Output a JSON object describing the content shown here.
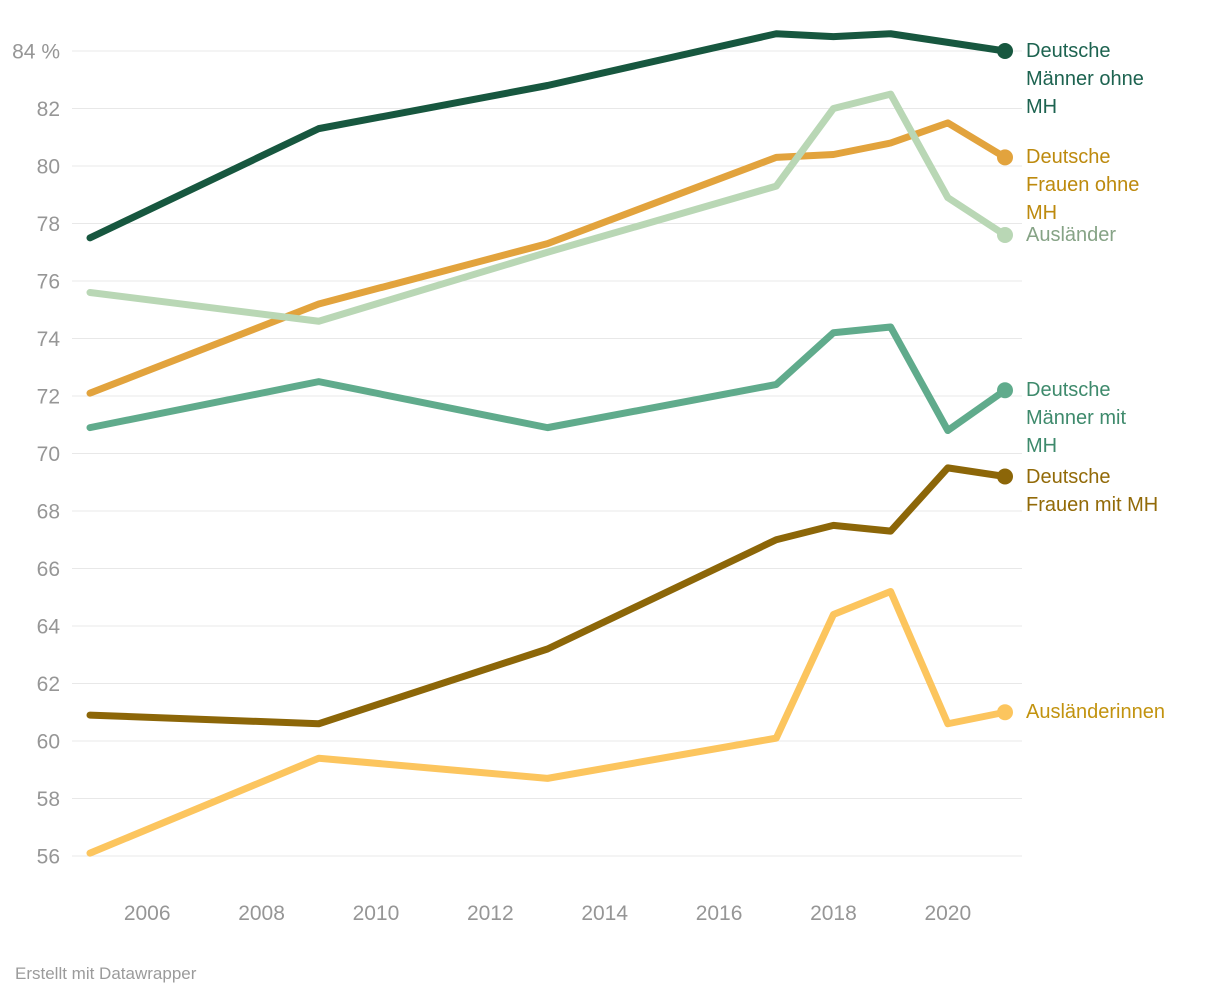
{
  "chart_data": {
    "type": "line",
    "x": [
      2005,
      2009,
      2013,
      2017,
      2018,
      2019,
      2020,
      2021
    ],
    "series": [
      {
        "name": "Deutsche Männer ohne MH",
        "label_lines": [
          "Deutsche",
          "Männer ohne",
          "MH"
        ],
        "color": "#17573f",
        "label_color": "#1d6350",
        "values": [
          77.5,
          81.3,
          82.8,
          84.6,
          84.5,
          84.6,
          84.3,
          84.0
        ]
      },
      {
        "name": "Deutsche Frauen ohne MH",
        "label_lines": [
          "Deutsche",
          "Frauen ohne",
          "MH"
        ],
        "color": "#e2a33d",
        "label_color": "#bd8a0e",
        "values": [
          72.1,
          75.2,
          77.3,
          80.3,
          80.4,
          80.8,
          81.5,
          80.3
        ]
      },
      {
        "name": "Ausländer",
        "label_lines": [
          "Ausländer"
        ],
        "color": "#b9d7b5",
        "label_color": "#86a386",
        "values": [
          75.6,
          74.6,
          77.0,
          79.3,
          82.0,
          82.5,
          78.9,
          77.6
        ]
      },
      {
        "name": "Deutsche Männer mit MH",
        "label_lines": [
          "Deutsche",
          "Männer mit",
          "MH"
        ],
        "color": "#60ab8c",
        "label_color": "#3e8a6c",
        "values": [
          70.9,
          72.5,
          70.9,
          72.4,
          74.2,
          74.4,
          70.8,
          72.2
        ]
      },
      {
        "name": "Deutsche Frauen mit MH",
        "label_lines": [
          "Deutsche",
          "Frauen mit MH"
        ],
        "color": "#8c6608",
        "label_color": "#926a08",
        "values": [
          60.9,
          60.6,
          63.2,
          67.0,
          67.5,
          67.3,
          69.5,
          69.2
        ]
      },
      {
        "name": "Ausländerinnen",
        "label_lines": [
          "Ausländerinnen"
        ],
        "color": "#fcc55e",
        "label_color": "#c2930f",
        "values": [
          56.1,
          59.4,
          58.7,
          60.1,
          64.4,
          65.2,
          60.6,
          61.0
        ]
      }
    ],
    "y_axis": {
      "min": 56,
      "max": 84,
      "step": 2,
      "top_label": "84 %"
    },
    "x_axis": {
      "ticks": [
        2006,
        2008,
        2010,
        2012,
        2014,
        2016,
        2018,
        2020
      ]
    },
    "unit": "%",
    "grid": true,
    "legend_position": "right"
  },
  "footer": {
    "attribution": "Erstellt mit Datawrapper"
  },
  "colors": {
    "grid": "#e8e8e8",
    "tick_text": "#969696",
    "background": "#ffffff"
  }
}
